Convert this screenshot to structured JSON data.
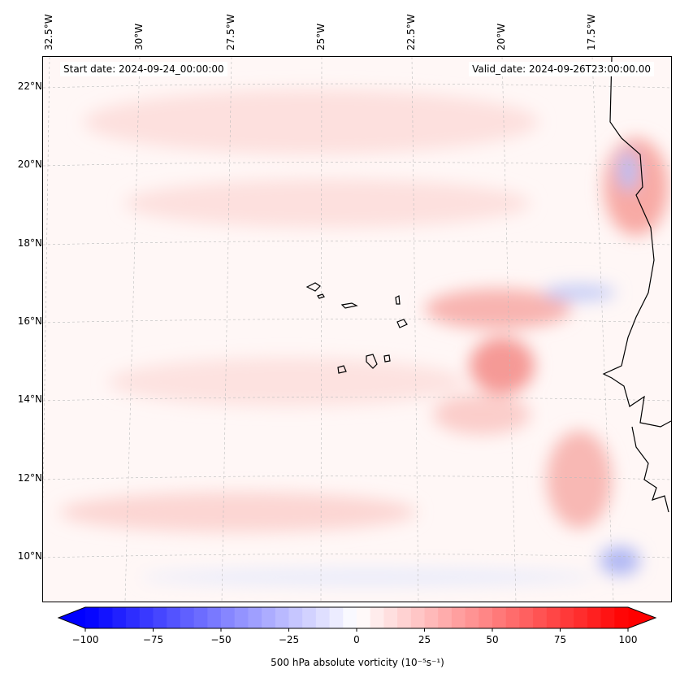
{
  "annotations": {
    "start_date": "Start date: 2024-09-24_00:00:00",
    "valid_date": "Valid_date: 2024-09-26T23:00:00.00"
  },
  "lon_labels": [
    "32.5°W",
    "30°W",
    "27.5°W",
    "25°W",
    "22.5°W",
    "20°W",
    "17.5°W"
  ],
  "lat_labels": [
    "22°N",
    "20°N",
    "18°N",
    "16°N",
    "14°N",
    "12°N",
    "10°N"
  ],
  "colorbar": {
    "ticks": [
      "−100",
      "−75",
      "−50",
      "−25",
      "0",
      "25",
      "50",
      "75",
      "100"
    ],
    "min": -100,
    "max": 100,
    "step": 5,
    "label": "500 hPa absolute vorticity (10⁻⁵s⁻¹)",
    "colormap": "bwr",
    "low_color": "#0000ff",
    "mid_color": "#ffffff",
    "high_color": "#ff0000"
  }
}
